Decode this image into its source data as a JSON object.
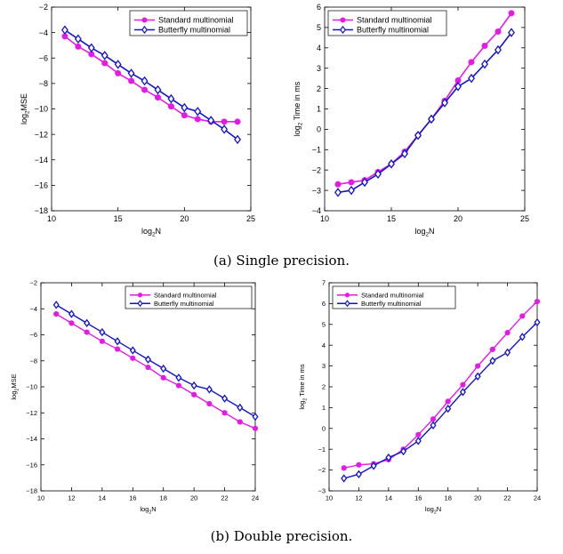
{
  "captions": {
    "a": "(a) Single precision.",
    "b": "(b) Double precision."
  },
  "colors": {
    "standard": "#e61ae6",
    "butterfly": "#1414c8"
  },
  "chart_data": [
    {
      "type": "line",
      "xlabel": "log₂N",
      "ylabel": "log₂MSE",
      "xlim": [
        10,
        25
      ],
      "ylim": [
        -18,
        -2
      ],
      "xticks": [
        10,
        15,
        20,
        25
      ],
      "yticks": [
        -18,
        -16,
        -14,
        -12,
        -10,
        -8,
        -6,
        -4,
        -2
      ],
      "grid": false,
      "legend": "top-right",
      "x": [
        11,
        12,
        13,
        14,
        15,
        16,
        17,
        18,
        19,
        20,
        21,
        22,
        23,
        24
      ],
      "series": [
        {
          "name": "Standard multinomial",
          "marker": "dot",
          "values": [
            -4.3,
            -5.1,
            -5.7,
            -6.4,
            -7.2,
            -7.8,
            -8.5,
            -9.1,
            -9.8,
            -10.5,
            -10.8,
            -11.0,
            -11.0,
            -11.0
          ]
        },
        {
          "name": "Butterfly multinomial",
          "marker": "diamond",
          "values": [
            -3.8,
            -4.5,
            -5.2,
            -5.8,
            -6.5,
            -7.2,
            -7.8,
            -8.5,
            -9.2,
            -9.9,
            -10.2,
            -10.9,
            -11.6,
            -12.4
          ]
        }
      ]
    },
    {
      "type": "line",
      "xlabel": "log₂N",
      "ylabel": "log₂ Time in ms",
      "xlim": [
        10,
        25
      ],
      "ylim": [
        -4,
        6
      ],
      "xticks": [
        10,
        15,
        20,
        25
      ],
      "yticks": [
        -4,
        -3,
        -2,
        -1,
        0,
        1,
        2,
        3,
        4,
        5,
        6
      ],
      "grid": false,
      "legend": "top-left",
      "x": [
        11,
        12,
        13,
        14,
        15,
        16,
        17,
        18,
        19,
        20,
        21,
        22,
        23,
        24
      ],
      "series": [
        {
          "name": "Standard multinomial",
          "marker": "dot",
          "values": [
            -2.7,
            -2.6,
            -2.5,
            -2.1,
            -1.7,
            -1.1,
            -0.3,
            0.5,
            1.4,
            2.4,
            3.3,
            4.1,
            4.8,
            5.7
          ]
        },
        {
          "name": "Butterfly multinomial",
          "marker": "diamond",
          "values": [
            -3.1,
            -3.0,
            -2.6,
            -2.2,
            -1.7,
            -1.2,
            -0.3,
            0.5,
            1.3,
            2.1,
            2.5,
            3.2,
            3.9,
            4.75
          ]
        }
      ]
    },
    {
      "type": "line",
      "xlabel": "log₂N",
      "ylabel": "log₂MSE",
      "xlim": [
        10,
        24
      ],
      "ylim": [
        -18,
        -2
      ],
      "xticks": [
        10,
        12,
        14,
        16,
        18,
        20,
        22,
        24
      ],
      "yticks": [
        -18,
        -16,
        -14,
        -12,
        -10,
        -8,
        -6,
        -4,
        -2
      ],
      "grid": false,
      "legend": "top-right",
      "x": [
        11,
        12,
        13,
        14,
        15,
        16,
        17,
        18,
        19,
        20,
        21,
        22,
        23,
        24
      ],
      "series": [
        {
          "name": "Standard multinomial",
          "marker": "dot",
          "values": [
            -4.4,
            -5.1,
            -5.8,
            -6.5,
            -7.1,
            -7.8,
            -8.5,
            -9.3,
            -9.9,
            -10.6,
            -11.3,
            -12.0,
            -12.7,
            -13.2
          ]
        },
        {
          "name": "Butterfly multinomial",
          "marker": "diamond",
          "values": [
            -3.7,
            -4.4,
            -5.1,
            -5.8,
            -6.5,
            -7.2,
            -7.9,
            -8.6,
            -9.3,
            -9.9,
            -10.2,
            -10.9,
            -11.6,
            -12.3
          ]
        }
      ]
    },
    {
      "type": "line",
      "xlabel": "log₂N",
      "ylabel": "log₂ Time in ms",
      "xlim": [
        10,
        24
      ],
      "ylim": [
        -3,
        7
      ],
      "xticks": [
        10,
        12,
        14,
        16,
        18,
        20,
        22,
        24
      ],
      "yticks": [
        -3,
        -2,
        -1,
        0,
        1,
        2,
        3,
        4,
        5,
        6,
        7
      ],
      "grid": false,
      "legend": "top-left",
      "x": [
        11,
        12,
        13,
        14,
        15,
        16,
        17,
        18,
        19,
        20,
        21,
        22,
        23,
        24
      ],
      "series": [
        {
          "name": "Standard multinomial",
          "marker": "dot",
          "values": [
            -1.9,
            -1.75,
            -1.7,
            -1.5,
            -1.0,
            -0.3,
            0.45,
            1.3,
            2.1,
            3.0,
            3.8,
            4.6,
            5.4,
            6.1
          ]
        },
        {
          "name": "Butterfly multinomial",
          "marker": "diamond",
          "values": [
            -2.4,
            -2.2,
            -1.8,
            -1.4,
            -1.1,
            -0.6,
            0.15,
            0.95,
            1.75,
            2.5,
            3.25,
            3.65,
            4.4,
            5.1
          ]
        }
      ]
    }
  ]
}
